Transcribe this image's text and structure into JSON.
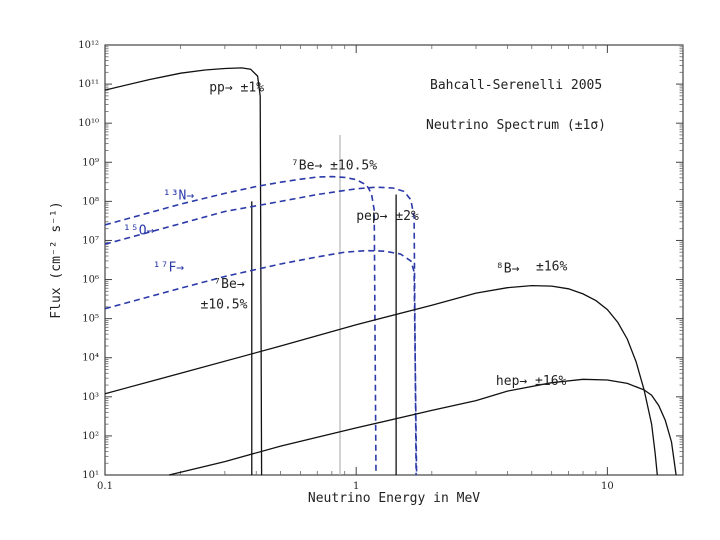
{
  "chart_data": {
    "type": "line",
    "title": "Bahcall-Serenelli 2005",
    "subtitle": "Neutrino Spectrum (±1σ)",
    "xlabel": "Neutrino Energy in MeV",
    "ylabel": "Flux (cm⁻² s⁻¹)",
    "xscale": "log",
    "yscale": "log",
    "xlim": [
      0.1,
      20
    ],
    "ylim": [
      10,
      1000000000000.0
    ],
    "x_ticks": [
      {
        "value": 0.1,
        "label": "0.1"
      },
      {
        "value": 1,
        "label": "1"
      },
      {
        "value": 10,
        "label": "10"
      }
    ],
    "y_ticks": [
      {
        "value": 1000000000000.0,
        "label": "10¹²"
      },
      {
        "value": 100000000000.0,
        "label": "10¹¹"
      },
      {
        "value": 10000000000.0,
        "label": "10¹⁰"
      },
      {
        "value": 1000000000.0,
        "label": "10⁹"
      },
      {
        "value": 100000000.0,
        "label": "10⁸"
      },
      {
        "value": 10000000.0,
        "label": "10⁷"
      },
      {
        "value": 1000000.0,
        "label": "10⁶"
      },
      {
        "value": 100000.0,
        "label": "10⁵"
      },
      {
        "value": 10000.0,
        "label": "10⁴"
      },
      {
        "value": 1000.0,
        "label": "10³"
      },
      {
        "value": 100.0,
        "label": "10²"
      },
      {
        "value": 10.0,
        "label": "10¹"
      }
    ],
    "grid": false,
    "series": [
      {
        "name": "pp",
        "style": "solid",
        "color": "#111111",
        "points": [
          [
            0.1,
            70000000000.0
          ],
          [
            0.15,
            130000000000.0
          ],
          [
            0.2,
            190000000000.0
          ],
          [
            0.25,
            230000000000.0
          ],
          [
            0.3,
            250000000000.0
          ],
          [
            0.35,
            260000000000.0
          ],
          [
            0.38,
            240000000000.0
          ],
          [
            0.405,
            160000000000.0
          ],
          [
            0.415,
            50000000000.0
          ],
          [
            0.42,
            10
          ]
        ]
      },
      {
        "name": "13N",
        "style": "dashed",
        "color": "#2b3aa8",
        "points": [
          [
            0.1,
            25000000.0
          ],
          [
            0.2,
            85000000.0
          ],
          [
            0.3,
            160000000.0
          ],
          [
            0.4,
            240000000.0
          ],
          [
            0.5,
            310000000.0
          ],
          [
            0.6,
            370000000.0
          ],
          [
            0.7,
            420000000.0
          ],
          [
            0.8,
            430000000.0
          ],
          [
            0.9,
            410000000.0
          ],
          [
            1.0,
            360000000.0
          ],
          [
            1.1,
            260000000.0
          ],
          [
            1.15,
            160000000.0
          ],
          [
            1.18,
            60000000.0
          ],
          [
            1.199,
            10
          ]
        ]
      },
      {
        "name": "15O",
        "style": "dashed",
        "color": "#2b3aa8",
        "points": [
          [
            0.1,
            8000000.0
          ],
          [
            0.2,
            27000000.0
          ],
          [
            0.3,
            55000000.0
          ],
          [
            0.5,
            100000000.0
          ],
          [
            0.7,
            150000000.0
          ],
          [
            1.0,
            210000000.0
          ],
          [
            1.2,
            230000000.0
          ],
          [
            1.4,
            220000000.0
          ],
          [
            1.55,
            180000000.0
          ],
          [
            1.65,
            110000000.0
          ],
          [
            1.7,
            40000000.0
          ],
          [
            1.732,
            10
          ]
        ]
      },
      {
        "name": "17F",
        "style": "dashed",
        "color": "#2b3aa8",
        "points": [
          [
            0.1,
            180000.0
          ],
          [
            0.2,
            600000.0
          ],
          [
            0.3,
            1200000.0
          ],
          [
            0.5,
            2500000.0
          ],
          [
            0.7,
            3800000.0
          ],
          [
            0.9,
            5000000.0
          ],
          [
            1.1,
            5500000.0
          ],
          [
            1.3,
            5300000.0
          ],
          [
            1.5,
            4500000.0
          ],
          [
            1.65,
            3000000.0
          ],
          [
            1.7,
            1600000.0
          ],
          [
            1.74,
            10
          ]
        ]
      },
      {
        "name": "8B",
        "style": "solid",
        "color": "#111111",
        "points": [
          [
            0.1,
            1200.0
          ],
          [
            0.2,
            4000.0
          ],
          [
            0.5,
            20000.0
          ],
          [
            1,
            70000.0
          ],
          [
            2,
            220000.0
          ],
          [
            3,
            450000.0
          ],
          [
            4,
            620000.0
          ],
          [
            5,
            700000.0
          ],
          [
            6,
            680000.0
          ],
          [
            7,
            580000.0
          ],
          [
            8,
            430000.0
          ],
          [
            9,
            290000.0
          ],
          [
            10,
            170000.0
          ],
          [
            11,
            80000.0
          ],
          [
            12,
            30000.0
          ],
          [
            13,
            8000.0
          ],
          [
            14,
            1500.0
          ],
          [
            15,
            200.0
          ],
          [
            15.5,
            35
          ],
          [
            15.8,
            10
          ]
        ]
      },
      {
        "name": "hep",
        "style": "solid",
        "color": "#111111",
        "points": [
          [
            0.18,
            10
          ],
          [
            0.3,
            22
          ],
          [
            0.5,
            55
          ],
          [
            1,
            160.0
          ],
          [
            2,
            450.0
          ],
          [
            3,
            800.0
          ],
          [
            4,
            1400.0
          ],
          [
            6,
            2300.0
          ],
          [
            8,
            2800.0
          ],
          [
            10,
            2700.0
          ],
          [
            12,
            2200.0
          ],
          [
            14,
            1500.0
          ],
          [
            15,
            1100.0
          ],
          [
            16,
            600.0
          ],
          [
            17,
            250.0
          ],
          [
            18,
            70
          ],
          [
            18.77,
            10
          ]
        ]
      }
    ],
    "lines": [
      {
        "name": "7Be (0.384 MeV)",
        "x": 0.384,
        "y": 100000000.0,
        "color": "#111111"
      },
      {
        "name": "7Be (0.862 MeV)",
        "x": 0.862,
        "y": 5000000000.0,
        "color": "#bbbbbb"
      },
      {
        "name": "pep",
        "x": 1.442,
        "y": 150000000.0,
        "color": "#111111"
      }
    ],
    "annotations": [
      {
        "id": "pp",
        "text": "pp→ ±1%",
        "x": 0.26,
        "y": 65000000000.0,
        "color": "#222222"
      },
      {
        "id": "be7_high",
        "text": "⁷Be→ ±10.5%",
        "x": 0.55,
        "y": 650000000.0,
        "color": "#222222"
      },
      {
        "id": "n13",
        "text": "¹³N→",
        "x": 0.17,
        "y": 110000000.0,
        "color": "#2b3aa8"
      },
      {
        "id": "o15",
        "text": "¹⁵O→",
        "x": 0.118,
        "y": 14000000.0,
        "color": "#2b3aa8"
      },
      {
        "id": "pep",
        "text": "pep→ ±2%",
        "x": 1.0,
        "y": 33000000.0,
        "color": "#222222"
      },
      {
        "id": "f17",
        "text": "¹⁷F→",
        "x": 0.155,
        "y": 1600000.0,
        "color": "#2b3aa8"
      },
      {
        "id": "be7_low_a",
        "text": "⁷Be→",
        "x": 0.27,
        "y": 600000.0,
        "color": "#222222"
      },
      {
        "id": "be7_low_b",
        "text": "±10.5%",
        "x": 0.24,
        "y": 180000.0,
        "color": "#222222"
      },
      {
        "id": "b8",
        "text": "⁸B→",
        "x": 3.6,
        "y": 1500000.0,
        "color": "#222222"
      },
      {
        "id": "b8_err",
        "text": "±16%",
        "x": 5.2,
        "y": 1700000.0,
        "color": "#222222"
      },
      {
        "id": "hep",
        "text": "hep→ ±16%",
        "x": 3.6,
        "y": 2000.0,
        "color": "#222222"
      }
    ]
  }
}
